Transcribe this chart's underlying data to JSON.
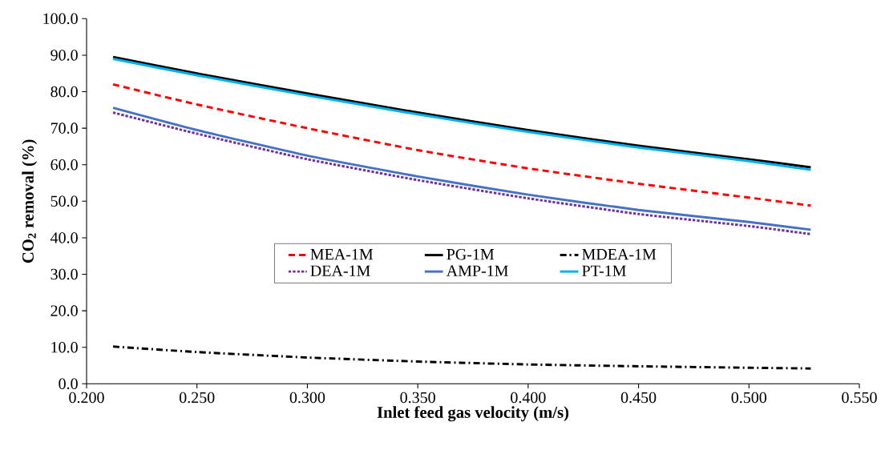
{
  "chart_data": {
    "type": "line",
    "xlabel": "Inlet feed gas velocity (m/s)",
    "ylabel": "CO$_{2}$ removal (%)",
    "x": [
      0.212,
      0.25,
      0.3,
      0.35,
      0.4,
      0.45,
      0.5,
      0.528
    ],
    "series": [
      {
        "name": "MEA-1M",
        "color": "#ff0000",
        "line_style": "dashed",
        "values": [
          82.0,
          76.5,
          70.0,
          64.0,
          59.0,
          54.8,
          51.0,
          48.8
        ]
      },
      {
        "name": "PG-1M",
        "color": "#000000",
        "line_style": "solid",
        "values": [
          89.5,
          85.0,
          79.5,
          74.3,
          69.5,
          65.2,
          61.5,
          59.3
        ]
      },
      {
        "name": "MDEA-1M",
        "color": "#000000",
        "line_style": "dashdot",
        "values": [
          10.2,
          8.7,
          7.2,
          6.1,
          5.3,
          4.8,
          4.4,
          4.2
        ]
      },
      {
        "name": "DEA-1M",
        "color": "#7030a0",
        "line_style": "dotted",
        "values": [
          74.3,
          68.5,
          61.5,
          55.8,
          50.8,
          46.5,
          43.2,
          41.0
        ]
      },
      {
        "name": "AMP-1M",
        "color": "#4472c4",
        "line_style": "solid",
        "values": [
          75.6,
          69.5,
          62.5,
          56.8,
          51.8,
          47.6,
          44.3,
          42.2
        ]
      },
      {
        "name": "PT-1M",
        "color": "#00b0f0",
        "line_style": "solid",
        "values": [
          89.0,
          84.5,
          79.0,
          73.8,
          69.0,
          64.7,
          61.0,
          58.6
        ]
      }
    ],
    "xlim": [
      0.2,
      0.55
    ],
    "xticks": [
      {
        "value": 0.2,
        "label": "0.200"
      },
      {
        "value": 0.25,
        "label": "0.250"
      },
      {
        "value": 0.3,
        "label": "0.300"
      },
      {
        "value": 0.35,
        "label": "0.350"
      },
      {
        "value": 0.4,
        "label": "0.400"
      },
      {
        "value": 0.45,
        "label": "0.450"
      },
      {
        "value": 0.5,
        "label": "0.500"
      },
      {
        "value": 0.55,
        "label": "0.550"
      }
    ],
    "ylim": [
      0,
      100
    ],
    "yticks": [
      {
        "value": 0,
        "label": "0.0"
      },
      {
        "value": 10,
        "label": "10.0"
      },
      {
        "value": 20,
        "label": "20.0"
      },
      {
        "value": 30,
        "label": "30.0"
      },
      {
        "value": 40,
        "label": "40.0"
      },
      {
        "value": 50,
        "label": "50.0"
      },
      {
        "value": 60,
        "label": "60.0"
      },
      {
        "value": 70,
        "label": "70.0"
      },
      {
        "value": 80,
        "label": "80.0"
      },
      {
        "value": 90,
        "label": "90.0"
      },
      {
        "value": 100,
        "label": "100.0"
      }
    ],
    "grid": false,
    "legend": "center"
  }
}
